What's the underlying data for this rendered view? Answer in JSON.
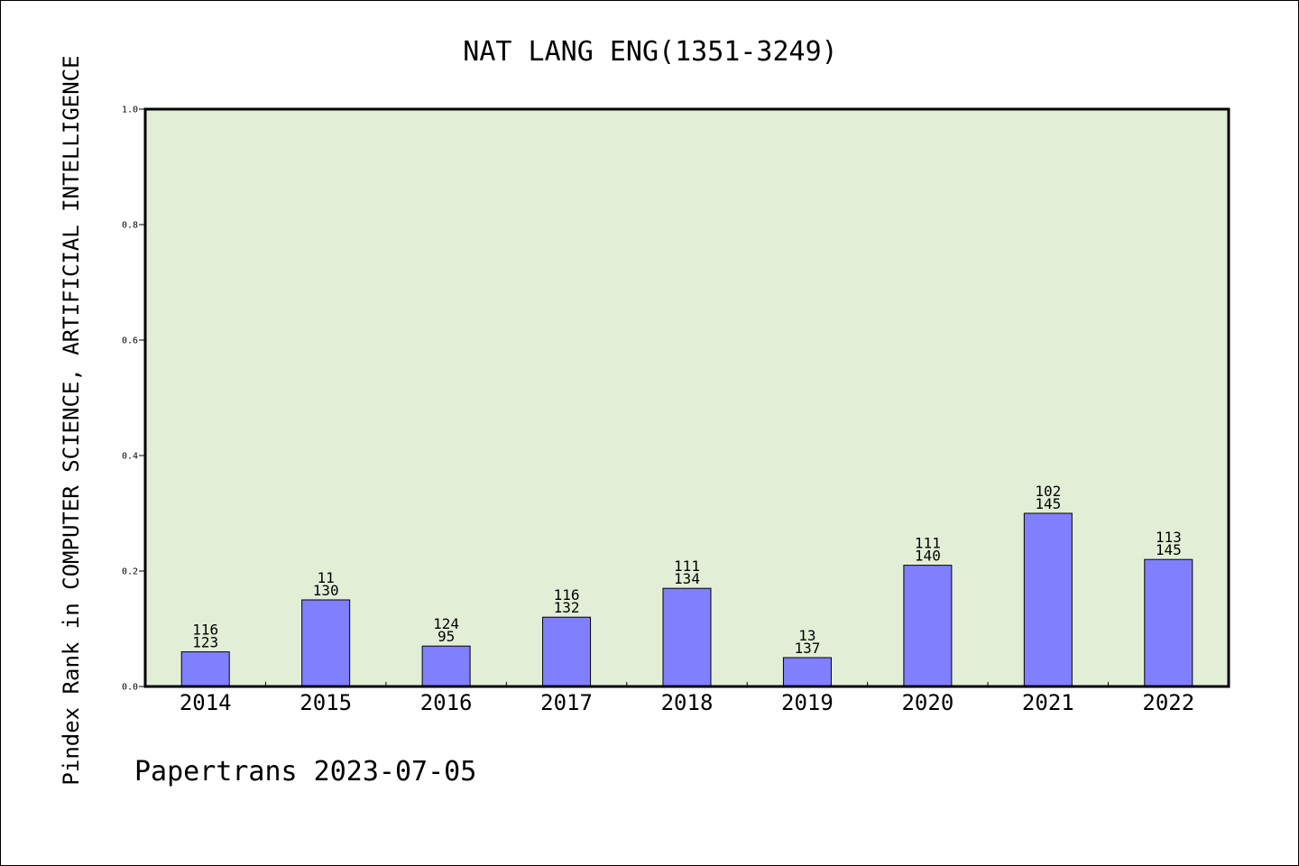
{
  "chart_data": {
    "type": "bar",
    "title": "NAT LANG ENG(1351-3249)",
    "xlabel": "",
    "ylabel": "Pindex Rank in COMPUTER SCIENCE, ARTIFICIAL INTELLIGENCE",
    "ylim": [
      0,
      1.0
    ],
    "yticks": [
      "0.0",
      "0.2",
      "0.4",
      "0.6",
      "0.8",
      "1.0"
    ],
    "categories": [
      "2014",
      "2015",
      "2016",
      "2017",
      "2018",
      "2019",
      "2020",
      "2021",
      "2022"
    ],
    "values": [
      0.06,
      0.15,
      0.07,
      0.12,
      0.17,
      0.05,
      0.21,
      0.3,
      0.22
    ],
    "labels_top": [
      "116",
      "11",
      "124",
      "116",
      "111",
      "13",
      "111",
      "102",
      "113"
    ],
    "labels_bottom": [
      "123",
      "130",
      "95",
      "132",
      "134",
      "137",
      "140",
      "145",
      "145"
    ],
    "grid": false,
    "colors": {
      "plot_background": "#e2efd6",
      "bar_fill": "#8080ff",
      "bar_stroke": "#000000"
    }
  },
  "footer": "Papertrans 2023-07-05"
}
